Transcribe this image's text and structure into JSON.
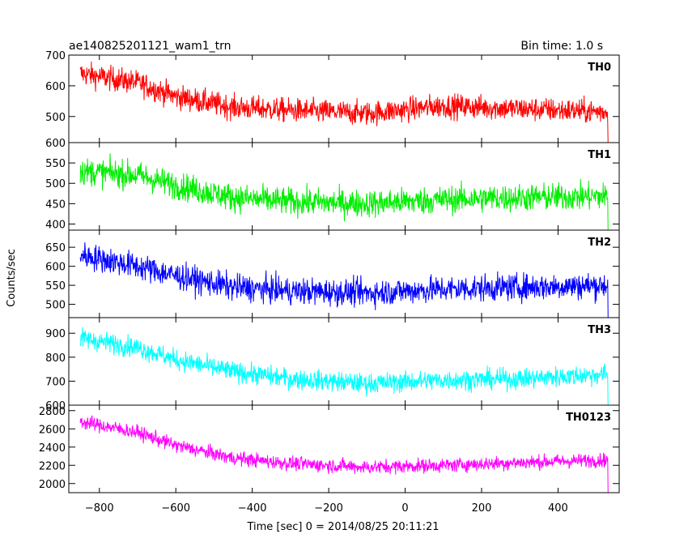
{
  "chart_data": {
    "type": "line",
    "title": "ae140825201121_wam1_trn",
    "bin_time_label": "Bin time: 1.0 s",
    "xlabel": "Time [sec] 0 = 2014/08/25 20:11:21",
    "ylabel": "Counts/sec",
    "xlim": [
      -880,
      560
    ],
    "x_ticks": [
      -800,
      -600,
      -400,
      -200,
      0,
      200,
      400
    ],
    "x_tick_labels": [
      "−800",
      "−600",
      "−400",
      "−200",
      "0",
      "200",
      "400"
    ],
    "x_range": [
      -850,
      530
    ],
    "grid": false,
    "panels": [
      {
        "name": "TH0",
        "color": "#ff0000",
        "ylim": [
          415,
          700
        ],
        "y_ticks": [
          500,
          600,
          700
        ],
        "y_tick_labels": [
          "500",
          "600",
          "700"
        ],
        "trend": [
          [
            -850,
            640
          ],
          [
            -700,
            610
          ],
          [
            -600,
            565
          ],
          [
            -450,
            530
          ],
          [
            -300,
            520
          ],
          [
            -100,
            510
          ],
          [
            100,
            535
          ],
          [
            300,
            525
          ],
          [
            530,
            515
          ]
        ],
        "noise": 28
      },
      {
        "name": "TH1",
        "color": "#00ee00",
        "ylim": [
          385,
          600
        ],
        "y_ticks": [
          400,
          450,
          500,
          550,
          600
        ],
        "y_tick_labels": [
          "400",
          "450",
          "500",
          "550",
          "600"
        ],
        "trend": [
          [
            -850,
            530
          ],
          [
            -700,
            520
          ],
          [
            -600,
            495
          ],
          [
            -450,
            465
          ],
          [
            -300,
            455
          ],
          [
            -100,
            450
          ],
          [
            100,
            460
          ],
          [
            300,
            465
          ],
          [
            530,
            468
          ]
        ],
        "noise": 24
      },
      {
        "name": "TH2",
        "color": "#0000ff",
        "ylim": [
          465,
          695
        ],
        "y_ticks": [
          500,
          550,
          600,
          650
        ],
        "y_tick_labels": [
          "500",
          "550",
          "600",
          "650"
        ],
        "trend": [
          [
            -850,
            630
          ],
          [
            -700,
            600
          ],
          [
            -600,
            575
          ],
          [
            -450,
            545
          ],
          [
            -300,
            535
          ],
          [
            -100,
            530
          ],
          [
            100,
            540
          ],
          [
            300,
            545
          ],
          [
            530,
            550
          ]
        ],
        "noise": 25
      },
      {
        "name": "TH3",
        "color": "#00ffff",
        "ylim": [
          600,
          965
        ],
        "y_ticks": [
          600,
          700,
          800,
          900
        ],
        "y_tick_labels": [
          "600",
          "700",
          "800",
          "900"
        ],
        "trend": [
          [
            -850,
            880
          ],
          [
            -700,
            840
          ],
          [
            -600,
            790
          ],
          [
            -450,
            740
          ],
          [
            -300,
            710
          ],
          [
            -100,
            690
          ],
          [
            100,
            705
          ],
          [
            300,
            710
          ],
          [
            530,
            730
          ]
        ],
        "noise": 30
      },
      {
        "name": "TH0123",
        "color": "#ff00ff",
        "ylim": [
          1900,
          2860
        ],
        "y_ticks": [
          2000,
          2200,
          2400,
          2600,
          2800
        ],
        "y_tick_labels": [
          "2000",
          "2200",
          "2400",
          "2600",
          "2800"
        ],
        "trend": [
          [
            -850,
            2680
          ],
          [
            -700,
            2560
          ],
          [
            -600,
            2420
          ],
          [
            -450,
            2280
          ],
          [
            -300,
            2220
          ],
          [
            -100,
            2180
          ],
          [
            100,
            2200
          ],
          [
            300,
            2230
          ],
          [
            530,
            2260
          ]
        ],
        "noise": 55
      }
    ]
  }
}
